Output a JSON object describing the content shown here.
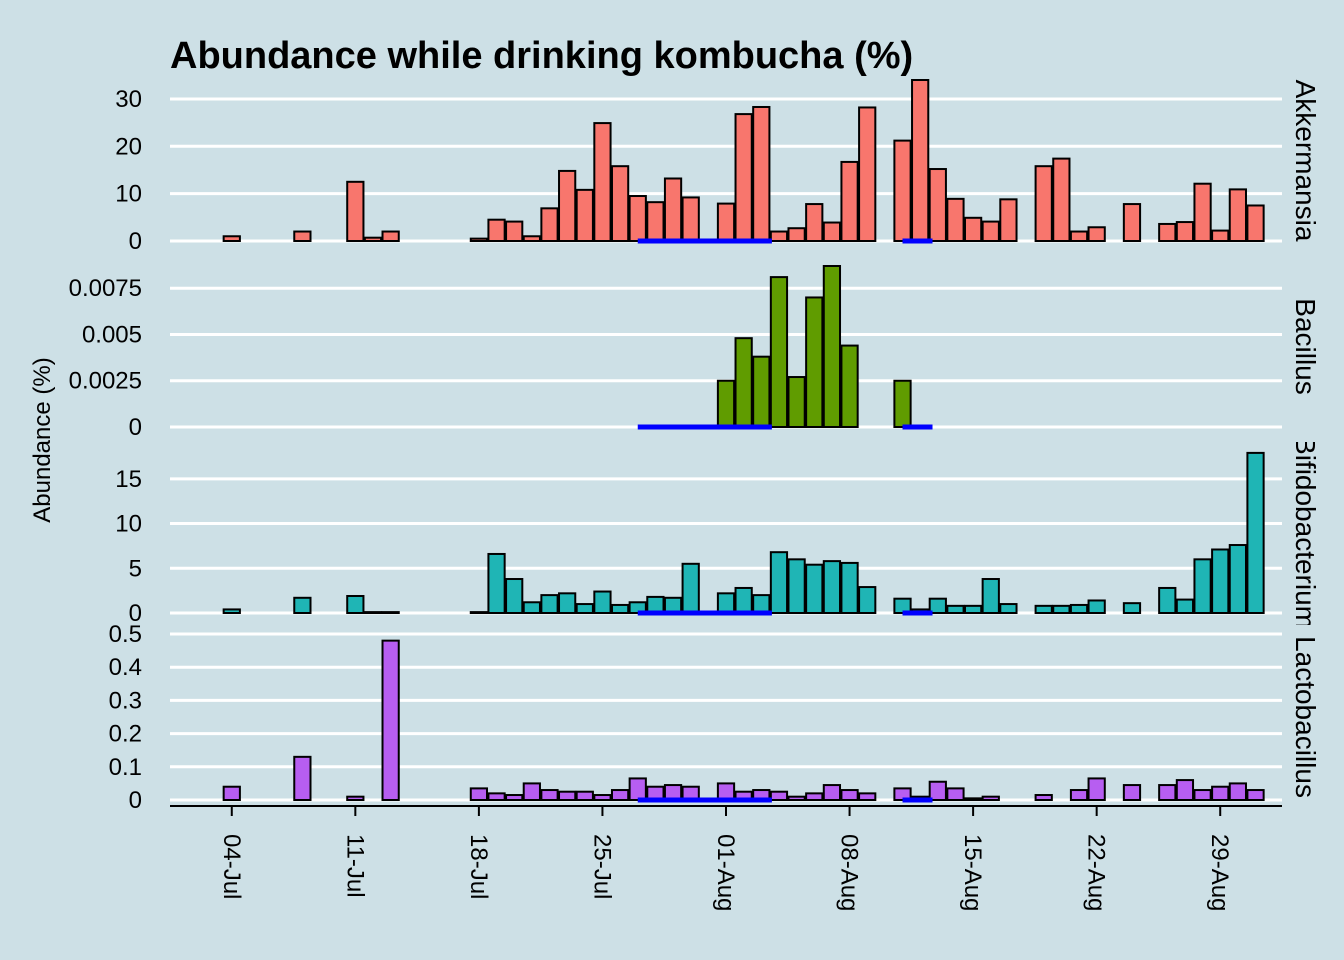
{
  "chart_data": {
    "type": "bar",
    "title": "Abundance while drinking kombucha (%)",
    "ylabel": "Abundance (%)",
    "xlabel": "",
    "x_ticks": [
      "04-Jul",
      "11-Jul",
      "18-Jul",
      "25-Jul",
      "01-Aug",
      "08-Aug",
      "15-Aug",
      "22-Aug",
      "29-Aug"
    ],
    "x_tick_days": [
      4,
      11,
      18,
      25,
      32,
      39,
      46,
      53,
      60
    ],
    "x_range_days": [
      0.5,
      63.5
    ],
    "grid": true,
    "kombucha_periods_days": [
      [
        27,
        34.6
      ],
      [
        42,
        43.7
      ]
    ],
    "kombucha_color": "#0000ff",
    "panels": [
      {
        "name": "Akkermansia",
        "strip_label": "Akkermansia",
        "color": "#f8766d",
        "ylim": [
          0,
          34
        ],
        "yticks": [
          0,
          10,
          20,
          30
        ],
        "ytick_labels": [
          "0",
          "10",
          "20",
          "30"
        ],
        "days": [
          4,
          8,
          11,
          12,
          13,
          18,
          19,
          20,
          21,
          22,
          23,
          24,
          25,
          26,
          27,
          28,
          29,
          30,
          32,
          33,
          34,
          35,
          36,
          37,
          38,
          39,
          40,
          42,
          43,
          44,
          45,
          46,
          47,
          48,
          50,
          51,
          52,
          53,
          55,
          57,
          58,
          59,
          60,
          61,
          62
        ],
        "values": [
          1.0,
          2.0,
          12.5,
          0.7,
          2.0,
          0.5,
          4.5,
          4.1,
          1.0,
          6.9,
          14.8,
          10.8,
          24.9,
          15.8,
          9.5,
          8.2,
          13.2,
          9.2,
          7.9,
          26.8,
          28.3,
          2.0,
          2.7,
          7.8,
          3.9,
          16.7,
          28.2,
          21.2,
          34.0,
          15.2,
          8.9,
          4.9,
          4.1,
          8.8,
          15.8,
          17.4,
          2.0,
          2.9,
          7.8,
          3.6,
          4.0,
          12.1,
          2.2,
          10.9,
          7.5
        ]
      },
      {
        "name": "Bacillus",
        "strip_label": "Bacillus",
        "color": "#609c00",
        "ylim": [
          0,
          0.0087
        ],
        "yticks": [
          0,
          0.0025,
          0.005,
          0.0075
        ],
        "ytick_labels": [
          "0",
          "0.0025",
          "0.005",
          "0.0075"
        ],
        "days": [
          4,
          8,
          11,
          12,
          13,
          18,
          19,
          20,
          21,
          22,
          23,
          24,
          25,
          26,
          27,
          28,
          29,
          30,
          32,
          33,
          34,
          35,
          36,
          37,
          38,
          39,
          40,
          42,
          43,
          44,
          45,
          46,
          47,
          48,
          50,
          51,
          52,
          53,
          55,
          57,
          58,
          59,
          60,
          61,
          62
        ],
        "values": [
          0,
          0,
          0,
          0,
          0,
          0,
          0,
          0,
          0,
          0,
          0,
          0,
          0,
          0,
          0,
          0,
          0,
          0,
          0.0025,
          0.0048,
          0.0038,
          0.0081,
          0.0027,
          0.007,
          0.0087,
          0.0044,
          0,
          0.0025,
          0,
          0,
          0,
          0,
          0,
          0,
          0,
          0,
          0,
          0,
          0,
          0,
          0,
          0,
          0,
          0,
          0
        ]
      },
      {
        "name": "Bifidobacterium",
        "strip_label": "Bifidobacterium",
        "color": "#1fb5b5",
        "ylim": [
          0,
          18
        ],
        "yticks": [
          0,
          5,
          10,
          15
        ],
        "ytick_labels": [
          "0",
          "5",
          "10",
          "15"
        ],
        "days": [
          4,
          8,
          11,
          12,
          13,
          18,
          19,
          20,
          21,
          22,
          23,
          24,
          25,
          26,
          27,
          28,
          29,
          30,
          32,
          33,
          34,
          35,
          36,
          37,
          38,
          39,
          40,
          42,
          43,
          44,
          45,
          46,
          47,
          48,
          50,
          51,
          52,
          53,
          55,
          57,
          58,
          59,
          60,
          61,
          62
        ],
        "values": [
          0.4,
          1.7,
          1.9,
          0.1,
          0.1,
          0.1,
          6.6,
          3.8,
          1.2,
          2.0,
          2.2,
          1.0,
          2.4,
          0.9,
          1.2,
          1.8,
          1.7,
          5.5,
          2.2,
          2.8,
          2.0,
          6.8,
          6.0,
          5.4,
          5.8,
          5.6,
          2.9,
          1.6,
          0.4,
          1.6,
          0.8,
          0.8,
          3.8,
          1.0,
          0.8,
          0.8,
          0.9,
          1.4,
          1.1,
          2.8,
          1.5,
          6.0,
          7.1,
          7.6,
          17.9
        ]
      },
      {
        "name": "Lactobacillus",
        "strip_label": "Lactobacillus",
        "color": "#b75ef1",
        "ylim": [
          0,
          0.5
        ],
        "yticks": [
          0,
          0.1,
          0.2,
          0.3,
          0.4,
          0.5
        ],
        "ytick_labels": [
          "0",
          "0.1",
          "0.2",
          "0.3",
          "0.4",
          "0.5"
        ],
        "days": [
          4,
          8,
          11,
          12,
          13,
          18,
          19,
          20,
          21,
          22,
          23,
          24,
          25,
          26,
          27,
          28,
          29,
          30,
          32,
          33,
          34,
          35,
          36,
          37,
          38,
          39,
          40,
          42,
          43,
          44,
          45,
          46,
          47,
          48,
          50,
          51,
          52,
          53,
          55,
          57,
          58,
          59,
          60,
          61,
          62
        ],
        "values": [
          0.04,
          0.13,
          0.01,
          0.0,
          0.48,
          0.035,
          0.02,
          0.015,
          0.05,
          0.03,
          0.025,
          0.025,
          0.015,
          0.03,
          0.065,
          0.04,
          0.045,
          0.04,
          0.05,
          0.025,
          0.03,
          0.025,
          0.01,
          0.02,
          0.045,
          0.03,
          0.02,
          0.035,
          0.01,
          0.055,
          0.035,
          0.005,
          0.01,
          0.0,
          0.015,
          0.0,
          0.03,
          0.065,
          0.045,
          0.045,
          0.06,
          0.03,
          0.04,
          0.05,
          0.03
        ]
      }
    ]
  }
}
